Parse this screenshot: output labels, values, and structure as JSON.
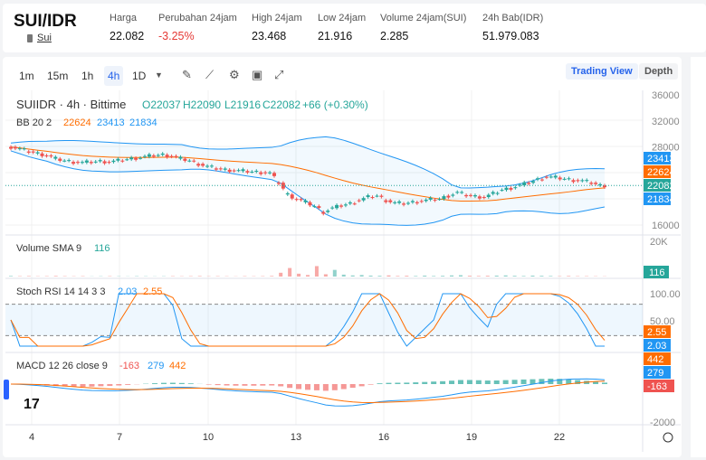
{
  "header": {
    "pair": "SUI/IDR",
    "coin": "Sui",
    "stats": [
      {
        "label": "Harga",
        "value": "22.082"
      },
      {
        "label": "Perubahan 24jam",
        "value": "-3.25%"
      },
      {
        "label": "High 24jam",
        "value": "23.468"
      },
      {
        "label": "Low 24jam",
        "value": "21.916"
      },
      {
        "label": "Volume 24jam(SUI)",
        "value": "2.285"
      },
      {
        "label": "24h Bab(IDR)",
        "value": "51.979.083"
      }
    ]
  },
  "toolbar": {
    "intervals": [
      "1m",
      "15m",
      "1h",
      "4h",
      "1D"
    ],
    "active": "4h",
    "trading_view": "Trading View",
    "depth": "Depth"
  },
  "legend": {
    "symbol": "SUIIDR · 4h · Bittime",
    "o": "O22037",
    "h": "H22090",
    "l": "L21916",
    "c": "C22082",
    "chg": "+66 (+0.30%)",
    "bb": "BB 20 2",
    "bb_mid": "22624",
    "bb_up": "23413",
    "bb_lo": "21834",
    "vol": "Volume SMA 9",
    "vol_val": "116",
    "stoch": "Stoch RSI 14 14 3 3",
    "stoch_k": "2.03",
    "stoch_d": "2.55",
    "macd": "MACD 12 26 close 9",
    "macd_h": "-163",
    "macd_m": "279",
    "macd_s": "442"
  },
  "colors": {
    "up": "#26a69a",
    "down": "#ef5350",
    "blue": "#2196f3",
    "orange": "#ff6d00"
  },
  "chart_data": {
    "type": "candlestick",
    "price_ticks": [
      36000,
      32000,
      28000,
      16000
    ],
    "price_labels": [
      {
        "t": "23413",
        "c": "#2196f3",
        "v": 23413
      },
      {
        "t": "22624",
        "c": "#ff6d00",
        "v": 22624
      },
      {
        "t": "22082",
        "c": "#26a69a",
        "v": 22082
      },
      {
        "t": "21834",
        "c": "#2196f3",
        "v": 21834
      }
    ],
    "vol_tick": "20K",
    "stoch_ticks": [
      "100.00",
      "50.00"
    ],
    "macd_tick": "-2000",
    "macd_labels": [
      {
        "t": "442",
        "c": "#ff6d00"
      },
      {
        "t": "279",
        "c": "#2196f3"
      },
      {
        "t": "-163",
        "c": "#ef5350"
      }
    ],
    "stoch_labels": [
      {
        "t": "2.55",
        "c": "#ff6d00"
      },
      {
        "t": "2.03",
        "c": "#2196f3"
      }
    ],
    "x_labels": [
      "4",
      "7",
      "10",
      "13",
      "16",
      "19",
      "22"
    ],
    "closes": [
      28000,
      27700,
      27300,
      27000,
      26700,
      26200,
      25900,
      25700,
      25600,
      25700,
      25800,
      25700,
      25900,
      26100,
      26300,
      26500,
      26700,
      26800,
      26600,
      26200,
      25900,
      25400,
      25000,
      24700,
      24500,
      24400,
      24300,
      24200,
      24100,
      24000,
      22500,
      20700,
      20000,
      19500,
      18900,
      18000,
      18600,
      19000,
      19300,
      19800,
      20300,
      20500,
      19800,
      19400,
      19300,
      19500,
      19700,
      19900,
      20000,
      20500,
      21000,
      20600,
      20400,
      20300,
      20800,
      21400,
      21700,
      22100,
      22500,
      23000,
      23400,
      23300,
      23100,
      22900,
      22800,
      22500,
      22082
    ],
    "volumes": [
      300,
      200,
      250,
      150,
      200,
      300,
      200,
      150,
      200,
      100,
      150,
      200,
      150,
      100,
      200,
      150,
      100,
      150,
      200,
      150,
      200,
      250,
      150,
      200,
      150,
      100,
      200,
      150,
      200,
      300,
      2000,
      4500,
      1500,
      800,
      5500,
      1200,
      3500,
      1000,
      600,
      800,
      500,
      400,
      600,
      300,
      400,
      300,
      500,
      300,
      400,
      600,
      700,
      400,
      300,
      400,
      500,
      600,
      400,
      300,
      500,
      400,
      300,
      200,
      300,
      200,
      200,
      150,
      116
    ]
  }
}
